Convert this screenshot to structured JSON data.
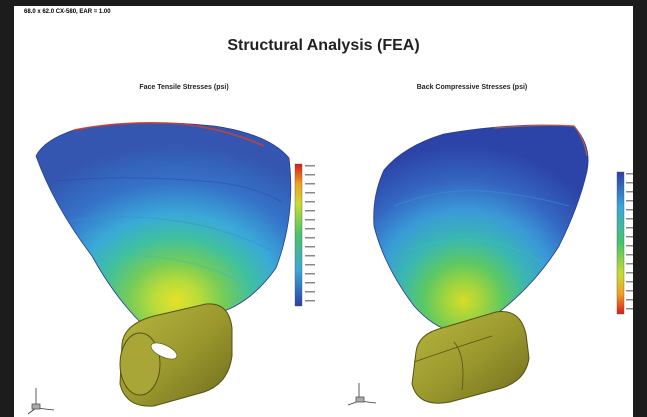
{
  "header": {
    "spec_line": "68.0 x 62.0 CX-580, EAR = 1.00",
    "title": "Structural Analysis (FEA)"
  },
  "panels": [
    {
      "id": "face",
      "subtitle": "Face Tensile Stresses (psi)"
    },
    {
      "id": "back",
      "subtitle": "Back Compressive Stresses (psi)"
    }
  ],
  "colors": {
    "background": "#1c1c1c",
    "sheet": "#ffffff",
    "hub": "#9c9a2e",
    "scale_low": "#2b3fa8",
    "scale_high": "#d81b1b"
  }
}
